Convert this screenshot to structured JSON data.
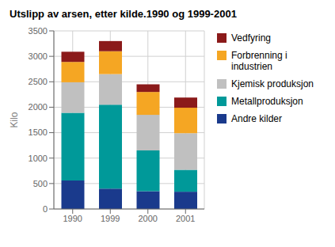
{
  "chart_data": {
    "type": "bar",
    "stacked": true,
    "title": "Utslipp av arsen, etter kilde.1990 og 1999-2001",
    "ylabel": "Kilo",
    "categories": [
      "1990",
      "1999",
      "2000",
      "2001"
    ],
    "series": [
      {
        "name": "Andre kilder",
        "color": "#1a3a8c",
        "values": [
          560,
          400,
          350,
          340
        ]
      },
      {
        "name": "Metallproduksjon",
        "color": "#009999",
        "values": [
          1330,
          1650,
          800,
          430
        ]
      },
      {
        "name": "Kjemisk produksjon",
        "color": "#c0c0c0",
        "values": [
          600,
          600,
          700,
          720
        ]
      },
      {
        "name": "Forbrenning i\nindustrien",
        "color": "#f5a623",
        "values": [
          400,
          450,
          450,
          500
        ]
      },
      {
        "name": "Vedfyring",
        "color": "#8b1a1a",
        "values": [
          200,
          200,
          150,
          200
        ]
      }
    ],
    "ylim": [
      0,
      3500
    ],
    "yticks": [
      0,
      500,
      1000,
      1500,
      2000,
      2500,
      3000,
      3500
    ],
    "grid": true,
    "legend": "right"
  }
}
